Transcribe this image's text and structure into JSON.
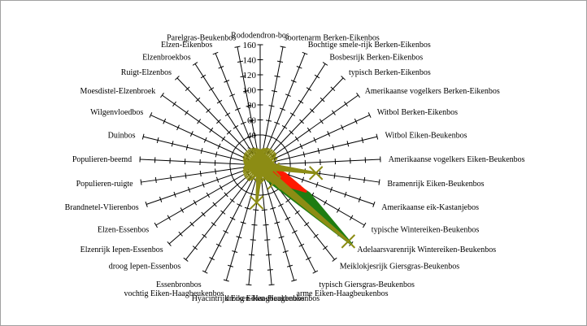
{
  "chart_data": {
    "type": "radar",
    "title": "",
    "rlim": [
      0,
      160
    ],
    "rticks": [
      20,
      40,
      60,
      80,
      100,
      120,
      140,
      160
    ],
    "categories": [
      "Rododendron-bos",
      "soortenarm Berken-Eikenbos",
      "Bochtige smele-rijk Berken-Eikenbos",
      "Bosbesrijk Berken-Eikenbos",
      "typisch Berken-Eikenbos",
      "Amerikaanse vogelkers Berken-Eikenbos",
      "Witbol Berken-Eikenbos",
      "Witbol Eiken-Beukenbos",
      "Amerikaanse vogelkers Eiken-Beukenbos",
      "Bramenrijk Eiken-Beukenbos",
      "Amerikaanse eik-Kastanjebos",
      "typische Wintereiken-Beukenbos",
      "Adelaarsvarenrijk Wintereiken-Beukenbos",
      "Meiklokjesrijk Giersgras-Beukenbos",
      "typisch Giersgras-Beukenbos",
      "arme Eiken-Haagbeukenbos",
      "droog Eiken-Haagbeukenbos",
      "Hyacintrijk Eiken-Haagbeukenbos",
      "vochtig Eiken-Haagbeukenbos",
      "Essenbronbos",
      "droog Iepen-Essenbos",
      "Elzenrijk Iepen-Essenbos",
      "Elzen-Essenbos",
      "Brandnetel-Vlierenbos",
      "Populieren-ruigte",
      "Populieren-beemd",
      "Duinbos",
      "Wilgenvloedbos",
      "Moesdistel-Elzenbroek",
      "Ruigt-Elzenbos",
      "Elzenbroekbos",
      "Elzen-Eikenbos",
      "Parelgras-Beukenbos"
    ],
    "series": [
      {
        "name": "",
        "color": "#1e7d12",
        "marker": "none",
        "values": [
          8,
          10,
          12,
          14,
          14,
          14,
          14,
          14,
          18,
          20,
          20,
          75,
          160,
          40,
          24,
          14,
          12,
          10,
          8,
          8,
          8,
          10,
          10,
          10,
          10,
          10,
          10,
          10,
          10,
          10,
          10,
          10,
          8
        ]
      },
      {
        "name": "",
        "color": "#ff1a00",
        "marker": "none",
        "values": [
          10,
          10,
          12,
          12,
          12,
          12,
          12,
          12,
          12,
          12,
          35,
          70,
          40,
          18,
          12,
          10,
          10,
          8,
          8,
          8,
          8,
          8,
          10,
          10,
          10,
          10,
          10,
          10,
          10,
          10,
          10,
          10,
          10
        ]
      },
      {
        "name": "",
        "color": "#8c8c14",
        "marker": "x",
        "values": [
          14,
          14,
          14,
          14,
          14,
          14,
          14,
          12,
          14,
          75,
          18,
          14,
          155,
          30,
          18,
          14,
          12,
          50,
          12,
          14,
          14,
          14,
          14,
          14,
          14,
          14,
          14,
          14,
          14,
          14,
          14,
          14,
          14
        ]
      }
    ]
  }
}
